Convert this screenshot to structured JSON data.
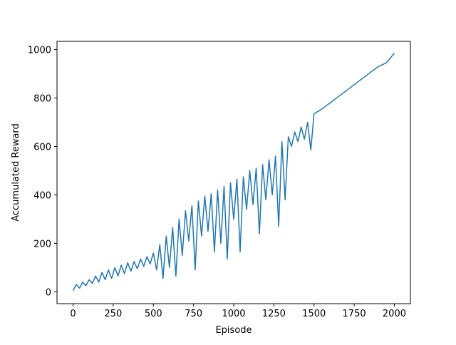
{
  "chart_data": {
    "type": "line",
    "xlabel": "Episode",
    "ylabel": "Accumulated Reward",
    "x": [
      0,
      20,
      40,
      60,
      80,
      100,
      120,
      140,
      160,
      180,
      200,
      220,
      240,
      260,
      280,
      300,
      320,
      340,
      360,
      380,
      400,
      420,
      440,
      460,
      480,
      500,
      520,
      540,
      560,
      580,
      600,
      620,
      640,
      660,
      680,
      700,
      720,
      740,
      760,
      780,
      800,
      820,
      840,
      860,
      880,
      900,
      920,
      940,
      960,
      980,
      1000,
      1020,
      1040,
      1060,
      1080,
      1100,
      1120,
      1140,
      1160,
      1180,
      1200,
      1220,
      1240,
      1260,
      1280,
      1300,
      1320,
      1340,
      1360,
      1380,
      1400,
      1420,
      1440,
      1460,
      1480,
      1500,
      1550,
      1600,
      1650,
      1700,
      1750,
      1800,
      1850,
      1900,
      1950,
      2000
    ],
    "values": [
      5,
      30,
      15,
      40,
      25,
      50,
      35,
      65,
      40,
      80,
      50,
      90,
      55,
      100,
      65,
      110,
      75,
      120,
      85,
      125,
      95,
      135,
      105,
      145,
      115,
      160,
      90,
      195,
      55,
      230,
      100,
      265,
      65,
      300,
      150,
      335,
      210,
      355,
      90,
      375,
      230,
      395,
      250,
      405,
      165,
      420,
      200,
      435,
      135,
      450,
      300,
      465,
      165,
      475,
      340,
      500,
      360,
      510,
      240,
      525,
      380,
      545,
      400,
      560,
      270,
      620,
      380,
      640,
      600,
      660,
      620,
      680,
      630,
      700,
      585,
      735,
      755,
      780,
      805,
      830,
      855,
      880,
      905,
      930,
      945,
      985
    ],
    "color": "#1f77b4",
    "xlim": [
      -100,
      2100
    ],
    "ylim": [
      -49,
      1034
    ],
    "xticks": [
      0,
      250,
      500,
      750,
      1000,
      1250,
      1500,
      1750,
      2000
    ],
    "yticks": [
      0,
      200,
      400,
      600,
      800,
      1000
    ],
    "grid": false
  }
}
